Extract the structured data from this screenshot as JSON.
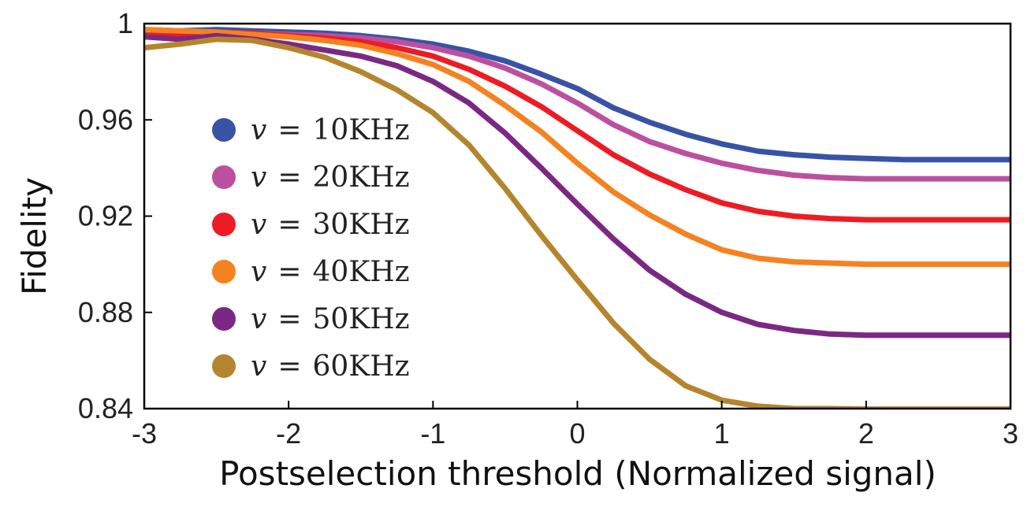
{
  "chart_data": {
    "type": "line",
    "title": "",
    "xlabel": "Postselection threshold (Normalized signal)",
    "ylabel": "Fidelity",
    "xlim": [
      -3,
      3
    ],
    "ylim": [
      0.84,
      1.0
    ],
    "xticks": [
      -3,
      -2,
      -1,
      0,
      1,
      2,
      3
    ],
    "xtick_labels": [
      "-3",
      "-2",
      "-1",
      "0",
      "1",
      "2",
      "3"
    ],
    "yticks": [
      0.84,
      0.88,
      0.92,
      0.96,
      1.0
    ],
    "ytick_labels": [
      "0.84",
      "0.88",
      "0.92",
      "0.96",
      "1"
    ],
    "legend_location": "center-left",
    "x": [
      -3.0,
      -2.75,
      -2.5,
      -2.25,
      -2.0,
      -1.75,
      -1.5,
      -1.25,
      -1.0,
      -0.75,
      -0.5,
      -0.25,
      0.0,
      0.25,
      0.5,
      0.75,
      1.0,
      1.25,
      1.5,
      1.75,
      2.0,
      2.25,
      2.5,
      2.75,
      3.0
    ],
    "series": [
      {
        "name": "10KHz",
        "legend_var": "v",
        "legend_eq": "=",
        "color": "#3953a4",
        "values": [
          0.9975,
          0.997,
          0.9975,
          0.997,
          0.9965,
          0.996,
          0.995,
          0.9935,
          0.9915,
          0.9885,
          0.9845,
          0.979,
          0.973,
          0.965,
          0.959,
          0.954,
          0.95,
          0.947,
          0.9455,
          0.9445,
          0.944,
          0.9435,
          0.9435,
          0.9435,
          0.9435
        ]
      },
      {
        "name": "20KHz",
        "legend_var": "v",
        "legend_eq": "=",
        "color": "#bc50a0",
        "values": [
          0.996,
          0.996,
          0.9965,
          0.996,
          0.9955,
          0.995,
          0.994,
          0.9925,
          0.99,
          0.9865,
          0.9815,
          0.975,
          0.967,
          0.958,
          0.951,
          0.946,
          0.942,
          0.939,
          0.937,
          0.936,
          0.9355,
          0.9355,
          0.9355,
          0.9355,
          0.9355
        ]
      },
      {
        "name": "30KHz",
        "legend_var": "v",
        "legend_eq": "=",
        "color": "#ed1c24",
        "values": [
          0.9965,
          0.995,
          0.9965,
          0.996,
          0.995,
          0.994,
          0.9925,
          0.99,
          0.9865,
          0.981,
          0.974,
          0.9655,
          0.9555,
          0.9455,
          0.9375,
          0.931,
          0.9255,
          0.922,
          0.92,
          0.919,
          0.9185,
          0.9185,
          0.9185,
          0.9185,
          0.9185
        ]
      },
      {
        "name": "40KHz",
        "legend_var": "v",
        "legend_eq": "=",
        "color": "#f58220",
        "values": [
          0.9975,
          0.997,
          0.9965,
          0.9955,
          0.9945,
          0.993,
          0.991,
          0.9875,
          0.983,
          0.976,
          0.966,
          0.955,
          0.942,
          0.93,
          0.9205,
          0.9125,
          0.906,
          0.9025,
          0.901,
          0.9005,
          0.9,
          0.9,
          0.9,
          0.9,
          0.9
        ]
      },
      {
        "name": "50KHz",
        "legend_var": "v",
        "legend_eq": "=",
        "color": "#7b2884",
        "values": [
          0.9945,
          0.9935,
          0.995,
          0.9935,
          0.9915,
          0.989,
          0.9865,
          0.9825,
          0.976,
          0.967,
          0.9545,
          0.94,
          0.925,
          0.9105,
          0.8975,
          0.8875,
          0.88,
          0.875,
          0.8725,
          0.871,
          0.8705,
          0.8705,
          0.8705,
          0.8705,
          0.8705
        ]
      },
      {
        "name": "60KHz",
        "legend_var": "v",
        "legend_eq": "=",
        "color": "#b5852d",
        "values": [
          0.99,
          0.9915,
          0.9935,
          0.993,
          0.99,
          0.986,
          0.98,
          0.9725,
          0.963,
          0.9495,
          0.9315,
          0.912,
          0.8935,
          0.8755,
          0.8605,
          0.8495,
          0.8435,
          0.841,
          0.84,
          0.84,
          0.8398,
          0.8398,
          0.8398,
          0.8398,
          0.8398
        ]
      }
    ]
  }
}
